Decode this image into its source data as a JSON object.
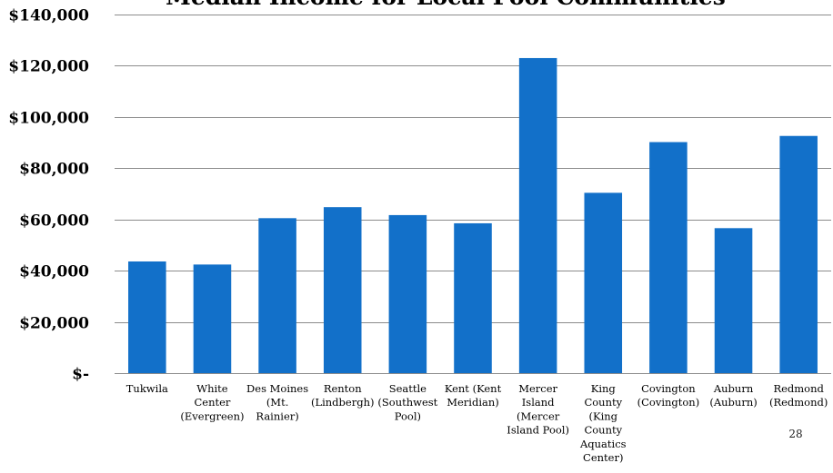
{
  "chart_data": {
    "type": "bar",
    "title": "Median Income for Local Pool Communities",
    "xlabel": "",
    "ylabel": "",
    "ylim": [
      0,
      140000
    ],
    "grid": true,
    "legend": "none",
    "y_ticks": [
      0,
      20000,
      40000,
      60000,
      80000,
      100000,
      120000,
      140000
    ],
    "y_tick_labels": [
      "$-",
      "$20,000",
      "$40,000",
      "$60,000",
      "$80,000",
      "$100,000",
      "$120,000",
      "$140,000"
    ],
    "categories": [
      "Tukwila",
      "White Center (Evergreen)",
      "Des Moines (Mt. Rainier)",
      "Renton (Lindbergh)",
      "Seattle (Southwest Pool)",
      "Kent (Kent Meridian)",
      "Mercer Island (Mercer Island Pool)",
      "King County (King County Aquatics Center)",
      "Covington (Covington)",
      "Auburn (Auburn)",
      "Redmond (Redmond)"
    ],
    "category_label_lines": [
      [
        "Tukwila"
      ],
      [
        "White",
        "Center",
        "(Evergreen)"
      ],
      [
        "Des Moines",
        "(Mt.",
        "Rainier)"
      ],
      [
        "Renton",
        "(Lindbergh)"
      ],
      [
        "Seattle",
        "(Southwest",
        "Pool)"
      ],
      [
        "Kent (Kent",
        "Meridian)"
      ],
      [
        "Mercer",
        "Island",
        "(Mercer",
        "Island Pool)"
      ],
      [
        "King",
        "County",
        "(King",
        "County",
        "Aquatics",
        "Center)"
      ],
      [
        "Covington",
        "(Covington)"
      ],
      [
        "Auburn",
        "(Auburn)"
      ],
      [
        "Redmond",
        "(Redmond)"
      ]
    ],
    "values": [
      43600,
      42400,
      60500,
      64800,
      61700,
      58500,
      123000,
      70400,
      90200,
      56600,
      92600
    ],
    "bar_color": "#1270c9"
  },
  "slide": {
    "page_number": "28"
  }
}
